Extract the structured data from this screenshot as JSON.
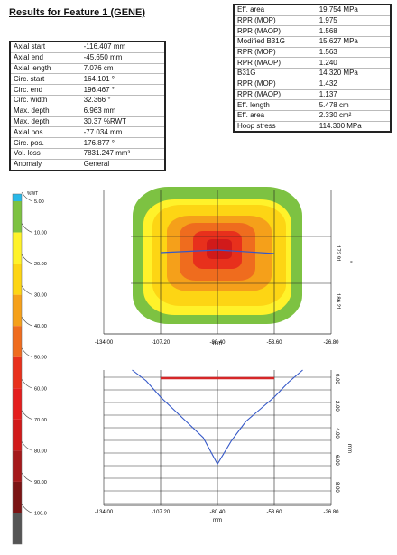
{
  "title": "Results for Feature 1 (GENE)",
  "left_table": [
    {
      "label": "Axial start",
      "value": "-116.407 mm"
    },
    {
      "label": "Axial end",
      "value": "-45.650 mm"
    },
    {
      "label": "Axial length",
      "value": "7.076 cm"
    },
    {
      "label": "Circ. start",
      "value": "164.101 °"
    },
    {
      "label": "Circ. end",
      "value": "196.467 °"
    },
    {
      "label": "Circ. width",
      "value": "32.366 °"
    },
    {
      "label": "Max. depth",
      "value": "6.963 mm"
    },
    {
      "label": "Max. depth",
      "value": "30.37 %RWT"
    },
    {
      "label": "Axial pos.",
      "value": "-77.034 mm"
    },
    {
      "label": "Circ. pos.",
      "value": "176.877 °"
    },
    {
      "label": "Vol. loss",
      "value": "7831.247 mm³"
    },
    {
      "label": "Anomaly",
      "value": "General"
    }
  ],
  "right_table": [
    {
      "label": "Eff. area",
      "value": "19.754 MPa"
    },
    {
      "label": "RPR (MOP)",
      "value": "1.975"
    },
    {
      "label": "RPR (MAOP)",
      "value": "1.568"
    },
    {
      "label": "Modified B31G",
      "value": "15.627 MPa"
    },
    {
      "label": "RPR (MOP)",
      "value": "1.563"
    },
    {
      "label": "RPR (MAOP)",
      "value": "1.240"
    },
    {
      "label": "B31G",
      "value": "14.320 MPa"
    },
    {
      "label": "RPR (MOP)",
      "value": "1.432"
    },
    {
      "label": "RPR (MAOP)",
      "value": "1.137"
    },
    {
      "label": "Eff. length",
      "value": "5.478 cm"
    },
    {
      "label": "Eff. area",
      "value": "2.330 cm²"
    },
    {
      "label": "Hoop stress",
      "value": "114.300 MPa"
    }
  ],
  "legend": {
    "unit": "%WT",
    "ticks": [
      "5.00",
      "10.00",
      "20.00",
      "30.00",
      "40.00",
      "50.00",
      "60.00",
      "70.00",
      "80.00",
      "90.00",
      "100.0"
    ],
    "colors": [
      "#28b8e8",
      "#7dc242",
      "#fff22a",
      "#fdd514",
      "#f5a01a",
      "#ef6c1e",
      "#e8301c",
      "#e41e1e",
      "#d11a1a",
      "#a5191b",
      "#7b1414",
      "#555555"
    ]
  },
  "chart_data": [
    {
      "type": "heatmap",
      "x_ticks": [
        "-134.00",
        "-107.20",
        "-80.40",
        "-53.60",
        "-26.80"
      ],
      "xlabel": "mm",
      "y_ticks_right": [
        "172.91",
        "186.21"
      ],
      "xlim": [
        -134.0,
        -26.8
      ],
      "profile_line": {
        "y_mm": 179.6,
        "x": [
          -107.2,
          -80.4,
          -53.6
        ]
      }
    },
    {
      "type": "line",
      "x_ticks": [
        "-134.00",
        "-107.20",
        "-80.40",
        "-53.60",
        "-26.80"
      ],
      "xlabel": "mm",
      "y_ticks": [
        "0.00",
        "2.00",
        "4.00",
        "6.00",
        "8.00"
      ],
      "ylabel": "mm",
      "xlim": [
        -134.0,
        -26.8
      ],
      "ylim": [
        0,
        10
      ],
      "depth_profile": {
        "x": [
          -120.6,
          -114.0,
          -107.2,
          -100.5,
          -93.8,
          -87.1,
          -80.4,
          -73.7,
          -67.0,
          -60.3,
          -53.6,
          -46.9,
          -40.2
        ],
        "y": [
          0.0,
          0.8,
          2.0,
          3.0,
          4.0,
          5.0,
          6.95,
          5.2,
          3.8,
          2.9,
          2.0,
          0.9,
          0.0
        ]
      },
      "threshold_line": {
        "y": 0.55,
        "x": [
          -107.2,
          -53.6
        ],
        "color": "#d62728"
      }
    }
  ]
}
